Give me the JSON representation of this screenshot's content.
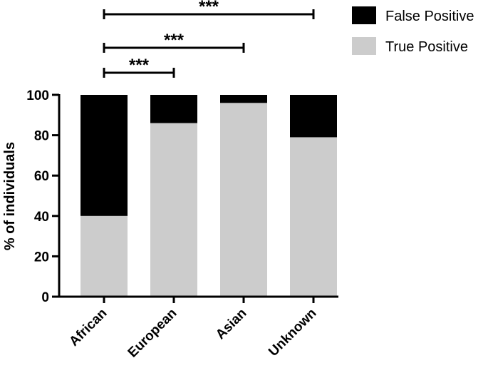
{
  "chart_data": {
    "type": "bar",
    "stacked": true,
    "title": "",
    "xlabel": "",
    "ylabel": "% of individuals",
    "ylim": [
      0,
      100
    ],
    "yticks": [
      0,
      20,
      40,
      60,
      80,
      100
    ],
    "grid": false,
    "legend_position": "top-right",
    "categories": [
      "African",
      "European",
      "Asian",
      "Unknown"
    ],
    "series": [
      {
        "name": "True Positive",
        "color": "#cccccc",
        "values": [
          40,
          86,
          96,
          79
        ]
      },
      {
        "name": "False Positive",
        "color": "#000000",
        "values": [
          60,
          14,
          4,
          21
        ]
      }
    ],
    "annotations": [
      {
        "from": "African",
        "to": "Unknown",
        "label": "***"
      },
      {
        "from": "African",
        "to": "Asian",
        "label": "***"
      },
      {
        "from": "African",
        "to": "European",
        "label": "***"
      }
    ]
  }
}
